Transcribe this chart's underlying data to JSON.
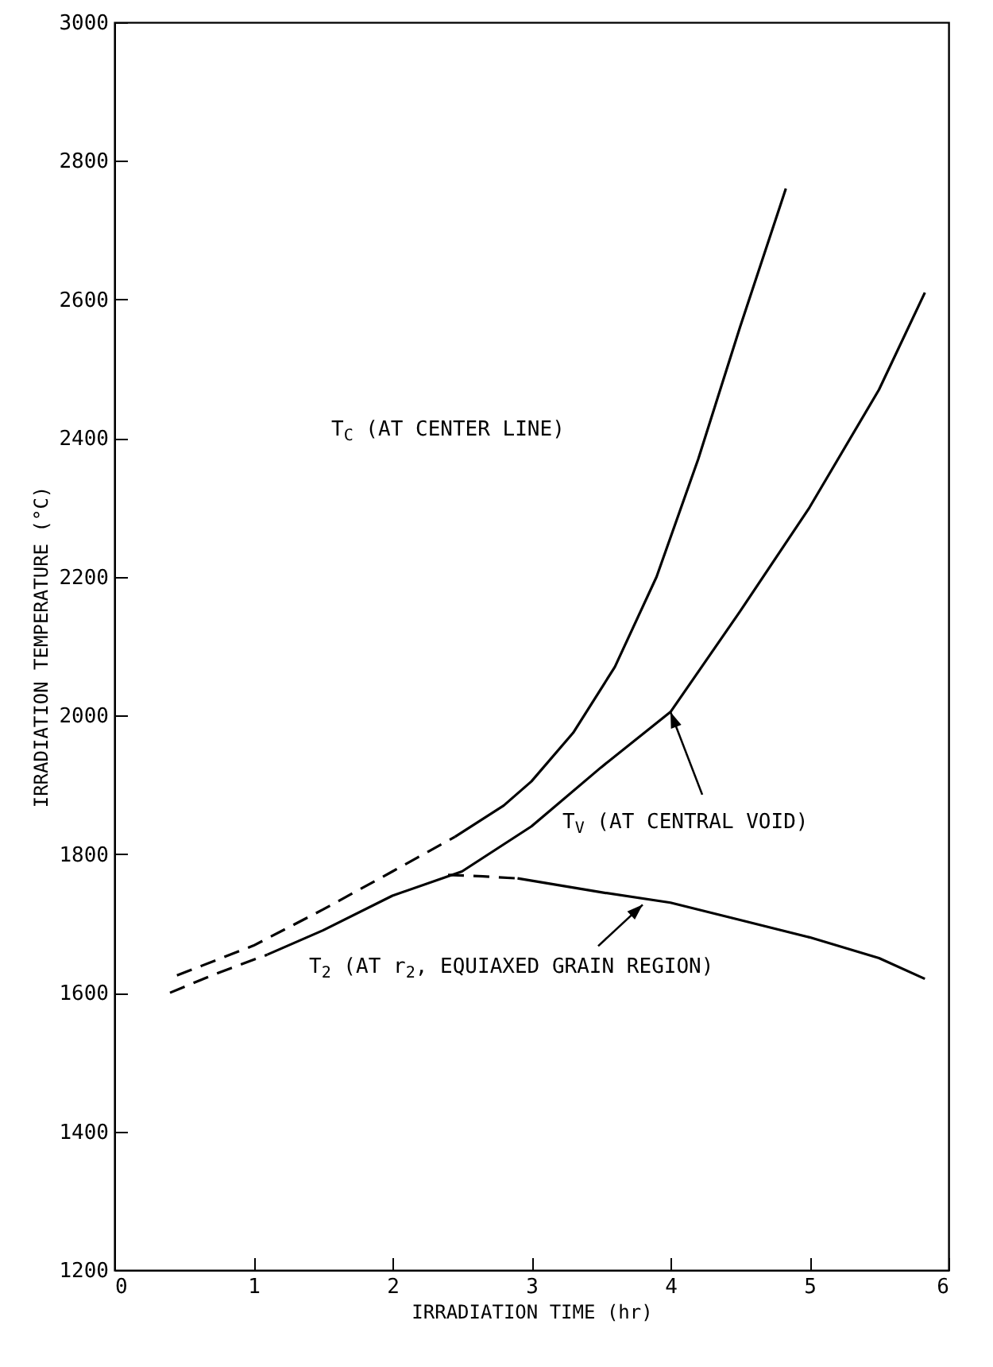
{
  "chart_data": {
    "type": "line",
    "xlabel": "IRRADIATION TIME (hr)",
    "ylabel": "IRRADIATION TEMPERATURE (°C)",
    "xlim": [
      0,
      6
    ],
    "xticks": [
      0,
      1,
      2,
      3,
      4,
      5,
      6
    ],
    "ylim": [
      1200,
      3000
    ],
    "yticks": [
      1200,
      1400,
      1600,
      1800,
      2000,
      2200,
      2400,
      2600,
      2800,
      3000
    ],
    "series": [
      {
        "color": "#000000",
        "line_style": "dashed",
        "x": [
          0.45,
          1.0,
          1.5,
          2.0,
          2.45
        ],
        "values": [
          1625,
          1668,
          1720,
          1775,
          1825
        ]
      },
      {
        "color": "#000000",
        "line_style": "solid",
        "x": [
          2.45,
          2.8,
          3.0,
          3.3,
          3.6,
          3.9,
          4.2,
          4.5,
          4.83
        ],
        "values": [
          1825,
          1870,
          1905,
          1975,
          2070,
          2200,
          2370,
          2560,
          2760
        ]
      },
      {
        "color": "#000000",
        "line_style": "dashed",
        "x": [
          0.4,
          0.7,
          1.1
        ],
        "values": [
          1600,
          1625,
          1655
        ]
      },
      {
        "color": "#000000",
        "line_style": "solid",
        "x": [
          1.1,
          1.5,
          2.0,
          2.5,
          3.0,
          3.5,
          4.0,
          4.5,
          5.0,
          5.5,
          5.83
        ],
        "values": [
          1655,
          1690,
          1740,
          1775,
          1840,
          1925,
          2005,
          2150,
          2300,
          2470,
          2610
        ]
      },
      {
        "color": "#000000",
        "line_style": "dashed",
        "x": [
          2.4,
          2.65,
          2.9
        ],
        "values": [
          1770,
          1768,
          1765
        ]
      },
      {
        "color": "#000000",
        "line_style": "solid",
        "x": [
          2.9,
          3.5,
          4.0,
          4.5,
          5.0,
          5.5,
          5.83
        ],
        "values": [
          1765,
          1745,
          1730,
          1705,
          1680,
          1650,
          1620
        ]
      }
    ],
    "annotations": [
      "T$_{C}$ (AT CENTER LINE)",
      {
        "text": "T$_{V}$ (AT CENTRAL VOID)",
        "x": 4.0,
        "y": 2005
      },
      {
        "text": "T$_{2}$ (AT r$_{2}$, EQUIAXED GRAIN REGION)",
        "x": 3.8,
        "y": 1727
      }
    ]
  }
}
